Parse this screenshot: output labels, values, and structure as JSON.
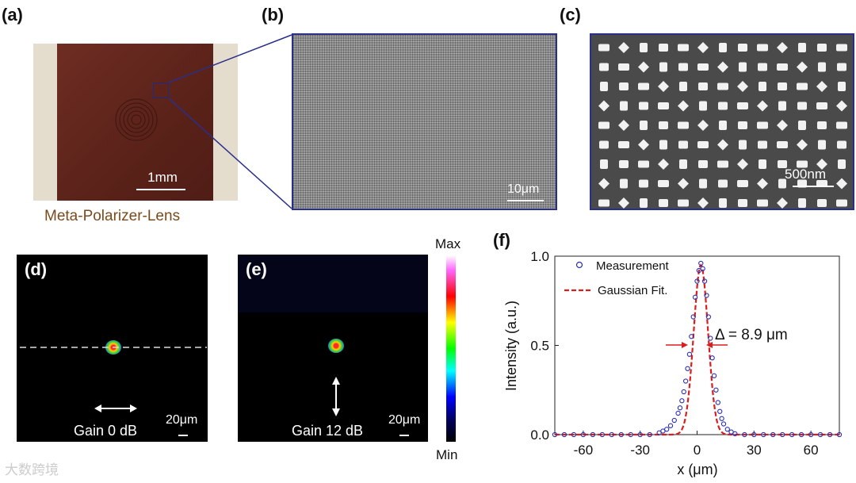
{
  "panels": {
    "a": {
      "label": "(a)",
      "scale": "1mm",
      "caption": "Meta-Polarizer-Lens"
    },
    "b": {
      "label": "(b)",
      "scale": "10μm"
    },
    "c": {
      "label": "(c)",
      "scale": "500nm"
    },
    "d": {
      "label": "(d)",
      "gain": "Gain 0 dB",
      "scale": "20μm"
    },
    "e": {
      "label": "(e)",
      "gain": "Gain 12 dB",
      "scale": "20μm"
    },
    "f": {
      "label": "(f)"
    }
  },
  "colorbar": {
    "max": "Max",
    "min": "Min"
  },
  "watermark": "大数跨境",
  "colors": {
    "measurement": "#2a2fb0",
    "fit": "#d81e1e",
    "frame": "#2a2f8a"
  },
  "chart_data": {
    "type": "scatter",
    "xlabel": "x (μm)",
    "ylabel": "Intensity (a.u.)",
    "xlim": [
      -75,
      75
    ],
    "ylim": [
      0,
      1.0
    ],
    "xticks": [
      -60,
      -30,
      0,
      30,
      60
    ],
    "yticks": [
      0.0,
      0.5,
      1.0
    ],
    "ytick_labels": [
      "0.0",
      "0.5",
      "1.0"
    ],
    "legend": [
      "Measurement",
      "Gaussian Fit."
    ],
    "annotation": "Δ = 8.9 μm",
    "fit": {
      "center": 2,
      "fwhm": 8.9,
      "amplitude": 0.95
    },
    "series": [
      {
        "name": "Measurement",
        "x": [
          -75,
          -70,
          -65,
          -60,
          -55,
          -50,
          -45,
          -40,
          -35,
          -30,
          -25,
          -20,
          -18,
          -16,
          -14,
          -12,
          -10,
          -9,
          -8,
          -7,
          -6,
          -5,
          -4,
          -3,
          -2,
          -1,
          0,
          1,
          2,
          3,
          4,
          5,
          6,
          7,
          8,
          9,
          10,
          11,
          12,
          13,
          14,
          16,
          18,
          20,
          25,
          30,
          35,
          40,
          45,
          50,
          55,
          60,
          65,
          70,
          75
        ],
        "y": [
          0.0,
          0.0,
          0.0,
          0.0,
          0.0,
          0.0,
          0.0,
          0.0,
          0.0,
          0.0,
          0.0,
          0.01,
          0.02,
          0.03,
          0.05,
          0.08,
          0.12,
          0.15,
          0.19,
          0.24,
          0.3,
          0.37,
          0.45,
          0.55,
          0.66,
          0.77,
          0.86,
          0.92,
          0.96,
          0.93,
          0.86,
          0.78,
          0.66,
          0.54,
          0.43,
          0.33,
          0.25,
          0.18,
          0.13,
          0.09,
          0.06,
          0.03,
          0.015,
          0.005,
          0.0,
          0.0,
          0.0,
          0.0,
          0.0,
          0.0,
          0.0,
          0.0,
          0.0,
          0.0,
          0.0
        ]
      }
    ]
  }
}
